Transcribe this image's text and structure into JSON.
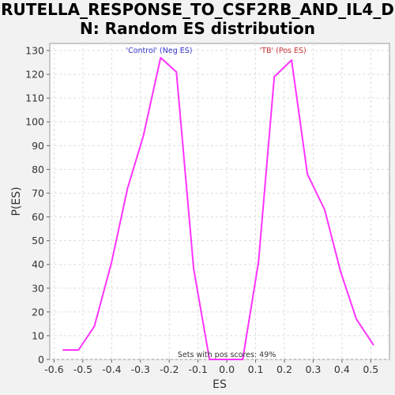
{
  "chart_data": {
    "type": "line",
    "title": "RUTELLA_RESPONSE_TO_CSF2RB_AND_IL4_D\nN: Random ES distribution",
    "xlabel": "ES",
    "ylabel": "P(ES)",
    "xlim": [
      -0.615,
      0.565
    ],
    "ylim": [
      0,
      133
    ],
    "x_ticks": [
      "-0.6",
      "-0.5",
      "-0.4",
      "-0.3",
      "-0.2",
      "-0.1",
      "0.0",
      "0.1",
      "0.2",
      "0.3",
      "0.4",
      "0.5"
    ],
    "x_tick_values": [
      -0.6,
      -0.5,
      -0.4,
      -0.3,
      -0.2,
      -0.1,
      0.0,
      0.1,
      0.2,
      0.3,
      0.4,
      0.5
    ],
    "y_ticks": [
      "0",
      "10",
      "20",
      "30",
      "40",
      "50",
      "60",
      "70",
      "80",
      "90",
      "100",
      "110",
      "120",
      "130"
    ],
    "y_tick_values": [
      0,
      10,
      20,
      30,
      40,
      50,
      60,
      70,
      80,
      90,
      100,
      110,
      120,
      130
    ],
    "grid": true,
    "series": [
      {
        "color": "#ff33ff",
        "x": [
          -0.57,
          -0.515,
          -0.46,
          -0.4,
          -0.345,
          -0.29,
          -0.23,
          -0.175,
          -0.115,
          -0.06,
          0.0,
          0.055,
          0.11,
          0.165,
          0.225,
          0.28,
          0.34,
          0.395,
          0.45,
          0.51
        ],
        "y": [
          4,
          4,
          14,
          41,
          72,
          94,
          127,
          121,
          38,
          0,
          0,
          0,
          41,
          119,
          126,
          78,
          63,
          37,
          17,
          6
        ]
      }
    ],
    "annotations": [
      {
        "text": "'Control' (Neg ES)",
        "color": "#3333cc",
        "x": -0.235,
        "y": 129
      },
      {
        "text": "'TB' (Pos ES)",
        "color": "#cc3333",
        "x": 0.195,
        "y": 129
      },
      {
        "text": "Sets with pos scores: 49%",
        "color": "#333333",
        "x": 0.0,
        "y": 1
      }
    ]
  }
}
